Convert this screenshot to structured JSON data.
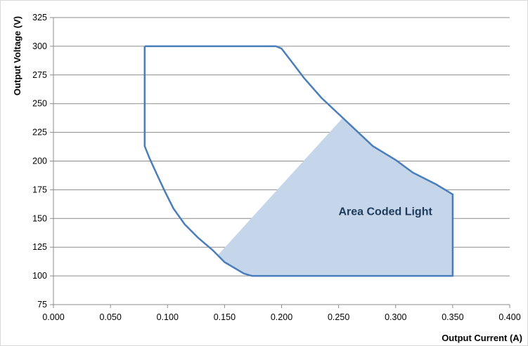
{
  "chart_data": {
    "type": "area",
    "title": "",
    "xlabel": "Output Current (A)",
    "ylabel": "Output Voltage (V)",
    "xlim": [
      0,
      0.4
    ],
    "ylim": [
      75,
      325
    ],
    "x_ticks": [
      "0.000",
      "0.050",
      "0.100",
      "0.150",
      "0.200",
      "0.250",
      "0.300",
      "0.350",
      "0.400"
    ],
    "y_ticks": [
      "75",
      "100",
      "125",
      "150",
      "175",
      "200",
      "225",
      "250",
      "275",
      "300",
      "325"
    ],
    "x_tick_values": [
      0,
      0.05,
      0.1,
      0.15,
      0.2,
      0.25,
      0.3,
      0.35,
      0.4
    ],
    "y_tick_values": [
      75,
      100,
      125,
      150,
      175,
      200,
      225,
      250,
      275,
      300,
      325
    ],
    "grid": "horizontal",
    "series": [
      {
        "kind": "outline",
        "color": "#4a7ebb",
        "points": [
          [
            0.08,
            300
          ],
          [
            0.195,
            300
          ],
          [
            0.2,
            298
          ],
          [
            0.21,
            285
          ],
          [
            0.22,
            272
          ],
          [
            0.235,
            255
          ],
          [
            0.25,
            241
          ],
          [
            0.265,
            227
          ],
          [
            0.28,
            213
          ],
          [
            0.3,
            201
          ],
          [
            0.315,
            190
          ],
          [
            0.335,
            180
          ],
          [
            0.35,
            171
          ],
          [
            0.35,
            100
          ],
          [
            0.174,
            100
          ],
          [
            0.167,
            102
          ],
          [
            0.15,
            112
          ],
          [
            0.14,
            122
          ],
          [
            0.127,
            133
          ],
          [
            0.115,
            145
          ],
          [
            0.105,
            159
          ],
          [
            0.097,
            175
          ],
          [
            0.09,
            190
          ],
          [
            0.084,
            203
          ],
          [
            0.08,
            213
          ],
          [
            0.08,
            300
          ]
        ]
      },
      {
        "kind": "fill",
        "color": "#c6d6ea",
        "points": [
          [
            0.144,
            118
          ],
          [
            0.253,
            237
          ],
          [
            0.265,
            227
          ],
          [
            0.28,
            213
          ],
          [
            0.3,
            201
          ],
          [
            0.315,
            190
          ],
          [
            0.335,
            180
          ],
          [
            0.35,
            171
          ],
          [
            0.35,
            100
          ],
          [
            0.174,
            100
          ],
          [
            0.167,
            102
          ],
          [
            0.15,
            112
          ]
        ]
      }
    ],
    "annotation": {
      "text": "Area Coded Light",
      "x": 0.291,
      "y": 153
    }
  }
}
